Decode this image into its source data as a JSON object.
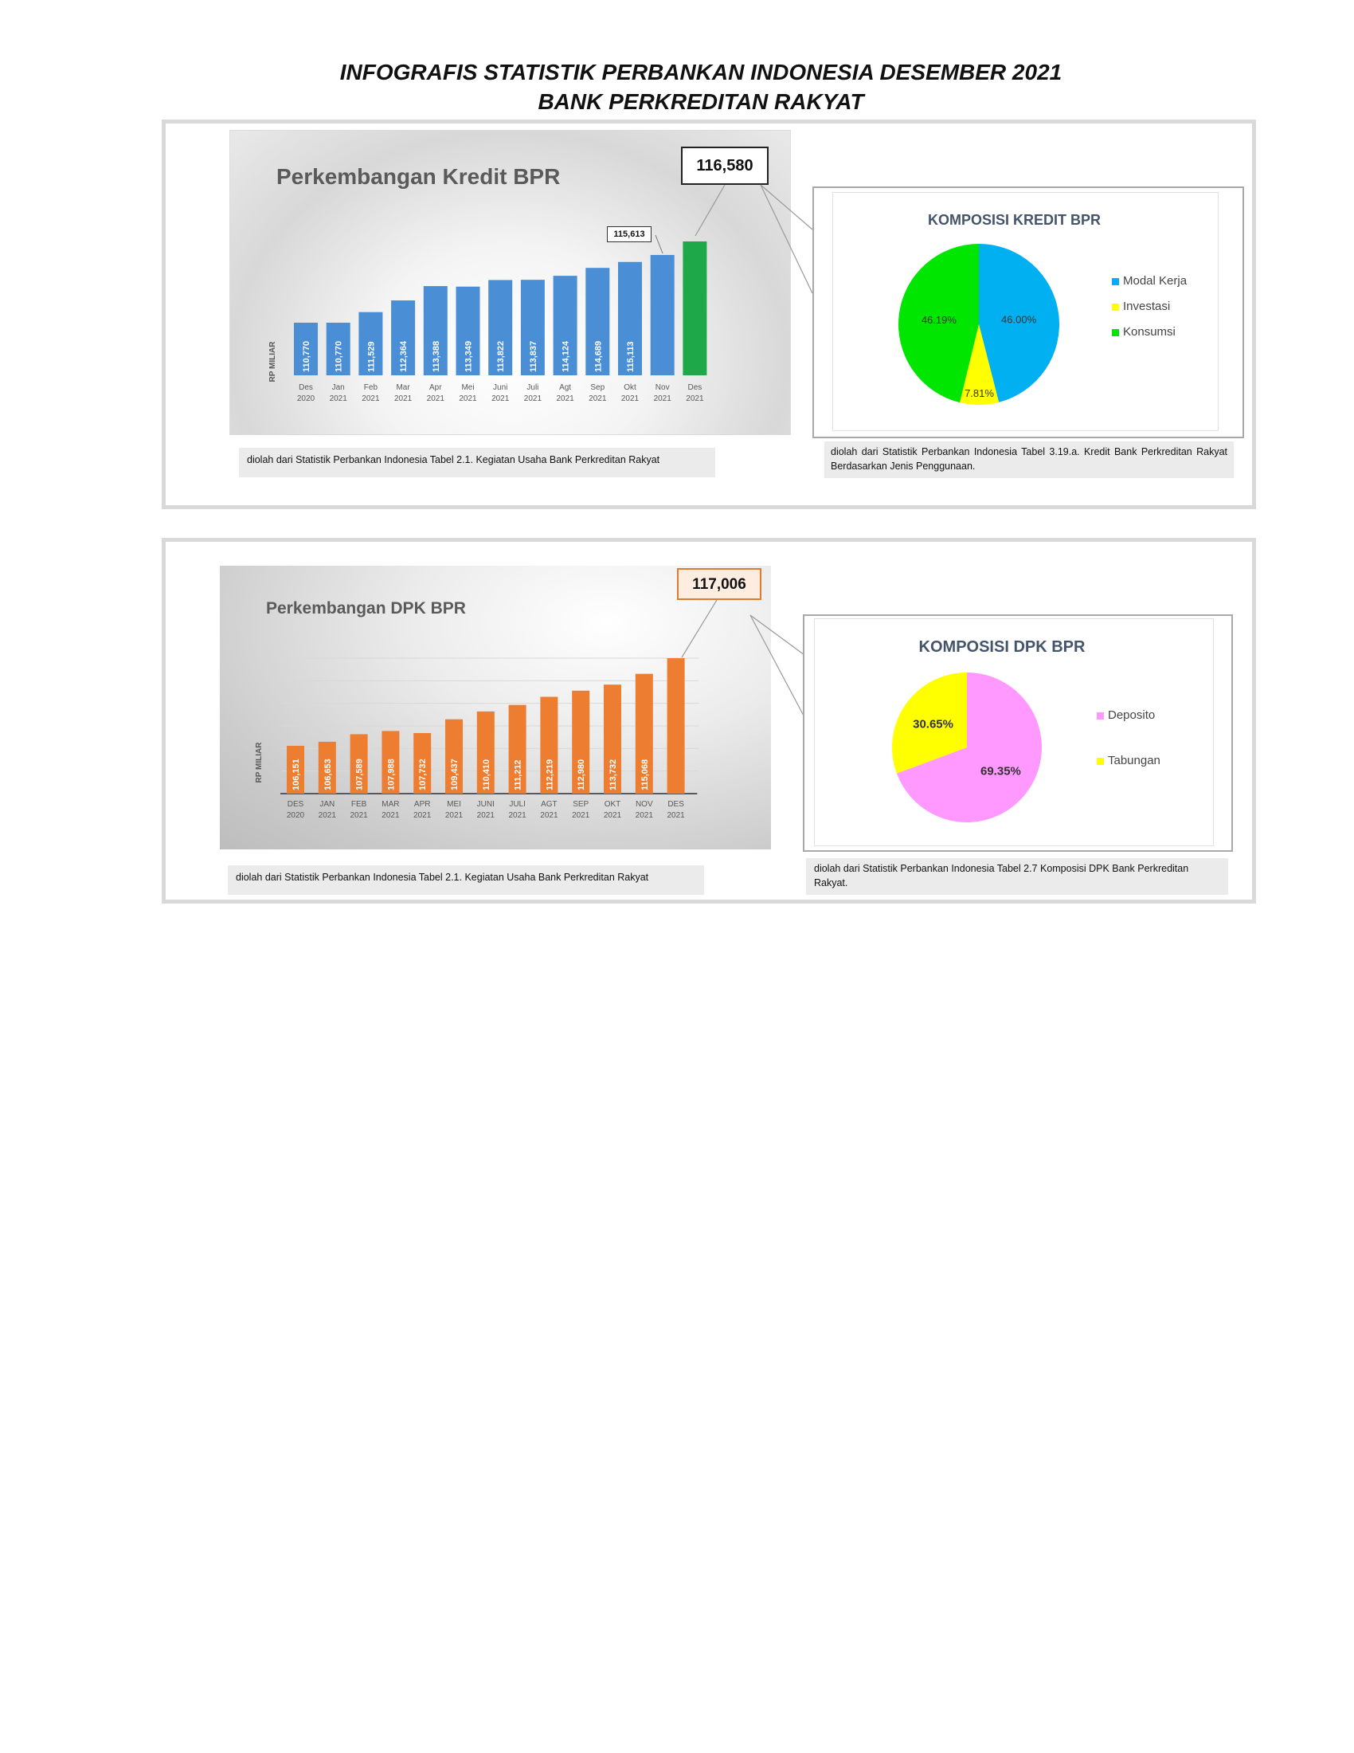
{
  "page": {
    "title_line1": "INFOGRAFIS STATISTIK PERBANKAN INDONESIA DESEMBER 2021",
    "title_line2": "BANK PERKREDITAN RAKYAT"
  },
  "kredit": {
    "callout_value": "116,580",
    "nov_callout": "115,613",
    "source": "diolah dari Statistik Perbankan Indonesia Tabel 2.1. Kegiatan Usaha Bank Perkreditan Rakyat",
    "pie_source": "diolah dari Statistik Perbankan Indonesia Tabel 3.19.a. Kredit Bank Perkreditan Rakyat Berdasarkan Jenis Penggunaan."
  },
  "dpk": {
    "callout_value": "117,006",
    "source": "diolah dari Statistik Perbankan Indonesia Tabel 2.1. Kegiatan Usaha Bank Perkreditan Rakyat",
    "pie_source": "diolah dari Statistik Perbankan Indonesia Tabel 2.7 Komposisi DPK Bank Perkreditan Rakyat."
  },
  "colors": {
    "kredit_bar": "#4a8fd6",
    "kredit_last": "#1fa84a",
    "dpk_bar": "#ed7d31",
    "modal_kerja": "#00b0f0",
    "investasi": "#ffff00",
    "konsumsi": "#00e600",
    "deposito": "#ff99ff",
    "tabungan": "#ffff00"
  },
  "chart_data": [
    {
      "id": "kredit-bar",
      "type": "bar",
      "title": "Perkembangan Kredit BPR",
      "ylabel": "RP MILIAR",
      "categories": [
        [
          "Des",
          "2020"
        ],
        [
          "Jan",
          "2021"
        ],
        [
          "Feb",
          "2021"
        ],
        [
          "Mar",
          "2021"
        ],
        [
          "Apr",
          "2021"
        ],
        [
          "Mei",
          "2021"
        ],
        [
          "Juni",
          "2021"
        ],
        [
          "Juli",
          "2021"
        ],
        [
          "Agt",
          "2021"
        ],
        [
          "Sep",
          "2021"
        ],
        [
          "Okt",
          "2021"
        ],
        [
          "Nov",
          "2021"
        ],
        [
          "Des",
          "2021"
        ]
      ],
      "values": [
        110770,
        110770,
        111529,
        112364,
        113388,
        113349,
        113822,
        113837,
        114124,
        114689,
        115113,
        115613,
        116580
      ],
      "labels": [
        "110,770",
        "110,770",
        "111,529",
        "112,364",
        "113,388",
        "113,349",
        "113,822",
        "113,837",
        "114,124",
        "114,689",
        "115,113",
        "",
        ""
      ]
    },
    {
      "id": "kredit-pie",
      "type": "pie",
      "title": "KOMPOSISI KREDIT BPR",
      "categories": [
        "Modal Kerja",
        "Investasi",
        "Konsumsi"
      ],
      "values": [
        46.0,
        7.81,
        46.19
      ],
      "labels": [
        "46.00%",
        "7.81%",
        "46.19%"
      ]
    },
    {
      "id": "dpk-bar",
      "type": "bar",
      "title": "Perkembangan DPK BPR",
      "ylabel": "RP MILIAR",
      "categories": [
        [
          "DES",
          "2020"
        ],
        [
          "JAN",
          "2021"
        ],
        [
          "FEB",
          "2021"
        ],
        [
          "MAR",
          "2021"
        ],
        [
          "APR",
          "2021"
        ],
        [
          "MEI",
          "2021"
        ],
        [
          "JUNI",
          "2021"
        ],
        [
          "JULI",
          "2021"
        ],
        [
          "AGT",
          "2021"
        ],
        [
          "SEP",
          "2021"
        ],
        [
          "OKT",
          "2021"
        ],
        [
          "NOV",
          "2021"
        ],
        [
          "DES",
          "2021"
        ]
      ],
      "values": [
        106151,
        106653,
        107589,
        107988,
        107732,
        109437,
        110410,
        111212,
        112219,
        112980,
        113732,
        115068,
        117006
      ],
      "labels": [
        "106,151",
        "106,653",
        "107,589",
        "107,988",
        "107,732",
        "109,437",
        "110,410",
        "111,212",
        "112,219",
        "112,980",
        "113,732",
        "115,068",
        ""
      ]
    },
    {
      "id": "dpk-pie",
      "type": "pie",
      "title": "KOMPOSISI DPK BPR",
      "categories": [
        "Deposito",
        "Tabungan"
      ],
      "values": [
        69.35,
        30.65
      ],
      "labels": [
        "69.35%",
        "30.65%"
      ]
    }
  ]
}
